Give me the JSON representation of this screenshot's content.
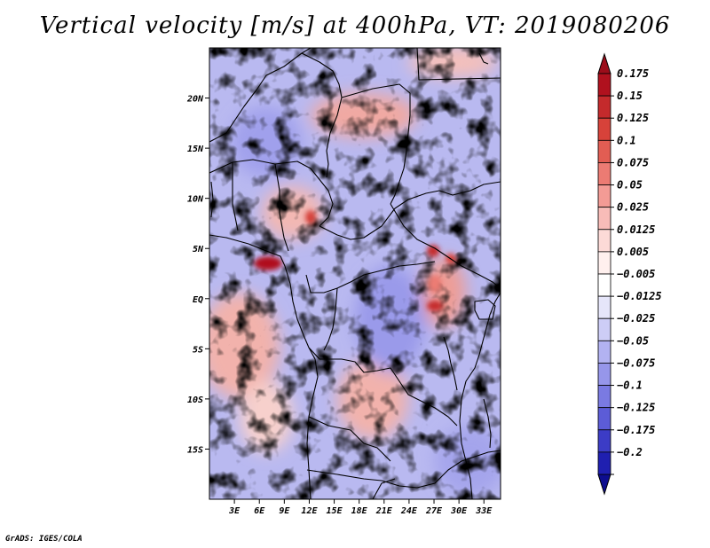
{
  "title": "Vertical velocity [m/s] at 400hPa, VT: 2019080206",
  "credit": "GrADS: IGES/COLA",
  "chart_data": {
    "type": "heatmap",
    "title": "Vertical velocity [m/s] at 400hPa, VT: 2019080206",
    "variable": "Vertical velocity",
    "units": "m/s",
    "level": "400hPa",
    "valid_time": "2019080206",
    "xlim": [
      0,
      35
    ],
    "ylim": [
      -20,
      25
    ],
    "x_ticks": [
      {
        "value": 3,
        "label": "3E"
      },
      {
        "value": 6,
        "label": "6E"
      },
      {
        "value": 9,
        "label": "9E"
      },
      {
        "value": 12,
        "label": "12E"
      },
      {
        "value": 15,
        "label": "15E"
      },
      {
        "value": 18,
        "label": "18E"
      },
      {
        "value": 21,
        "label": "21E"
      },
      {
        "value": 24,
        "label": "24E"
      },
      {
        "value": 27,
        "label": "27E"
      },
      {
        "value": 30,
        "label": "30E"
      },
      {
        "value": 33,
        "label": "33E"
      }
    ],
    "y_ticks": [
      {
        "value": 20,
        "label": "20N"
      },
      {
        "value": 15,
        "label": "15N"
      },
      {
        "value": 10,
        "label": "10N"
      },
      {
        "value": 5,
        "label": "5N"
      },
      {
        "value": 0,
        "label": "EQ"
      },
      {
        "value": -5,
        "label": "5S"
      },
      {
        "value": -10,
        "label": "10S"
      },
      {
        "value": -15,
        "label": "15S"
      }
    ],
    "colorbar": {
      "placement": "right",
      "levels": [
        {
          "label": "0.175",
          "color": "#b0111e"
        },
        {
          "label": "0.15",
          "color": "#c42a2c"
        },
        {
          "label": "0.125",
          "color": "#d7423a"
        },
        {
          "label": "0.1",
          "color": "#e25d53"
        },
        {
          "label": "0.075",
          "color": "#ec7b73"
        },
        {
          "label": "0.05",
          "color": "#f39b95"
        },
        {
          "label": "0.025",
          "color": "#f8bcb8"
        },
        {
          "label": "0.0125",
          "color": "#fcdad7"
        },
        {
          "label": "0.005",
          "color": "#fff0ee"
        },
        {
          "label": "−0.005",
          "color": "#ffffff"
        },
        {
          "label": "−0.0125",
          "color": "#e6e6fa"
        },
        {
          "label": "−0.025",
          "color": "#cdcdf6"
        },
        {
          "label": "−0.05",
          "color": "#b2b2f1"
        },
        {
          "label": "−0.075",
          "color": "#9696ea"
        },
        {
          "label": "−0.1",
          "color": "#7a7ae2"
        },
        {
          "label": "−0.125",
          "color": "#5c5cd7"
        },
        {
          "label": "−0.175",
          "color": "#3c3cc6"
        },
        {
          "label": "−0.2",
          "color": "#1f1fb0"
        }
      ],
      "top_triangle_color": "#9c0d1a",
      "bottom_triangle_color": "#0d0d8f"
    },
    "features": [
      {
        "name": "strong ascent",
        "lon": 6.5,
        "lat": 3.5,
        "value": 0.175
      },
      {
        "name": "ascent",
        "lon": 28,
        "lat": 4.5,
        "value": 0.15
      },
      {
        "name": "ascent",
        "lon": 28,
        "lat": -1,
        "value": 0.15
      },
      {
        "name": "ascent",
        "lon": 12,
        "lat": 7.5,
        "value": 0.1
      },
      {
        "name": "broad ascent",
        "lon": 3,
        "lat": -5,
        "value": 0.05
      },
      {
        "name": "broad ascent",
        "lon": 19,
        "lat": -11,
        "value": 0.05
      }
    ]
  }
}
